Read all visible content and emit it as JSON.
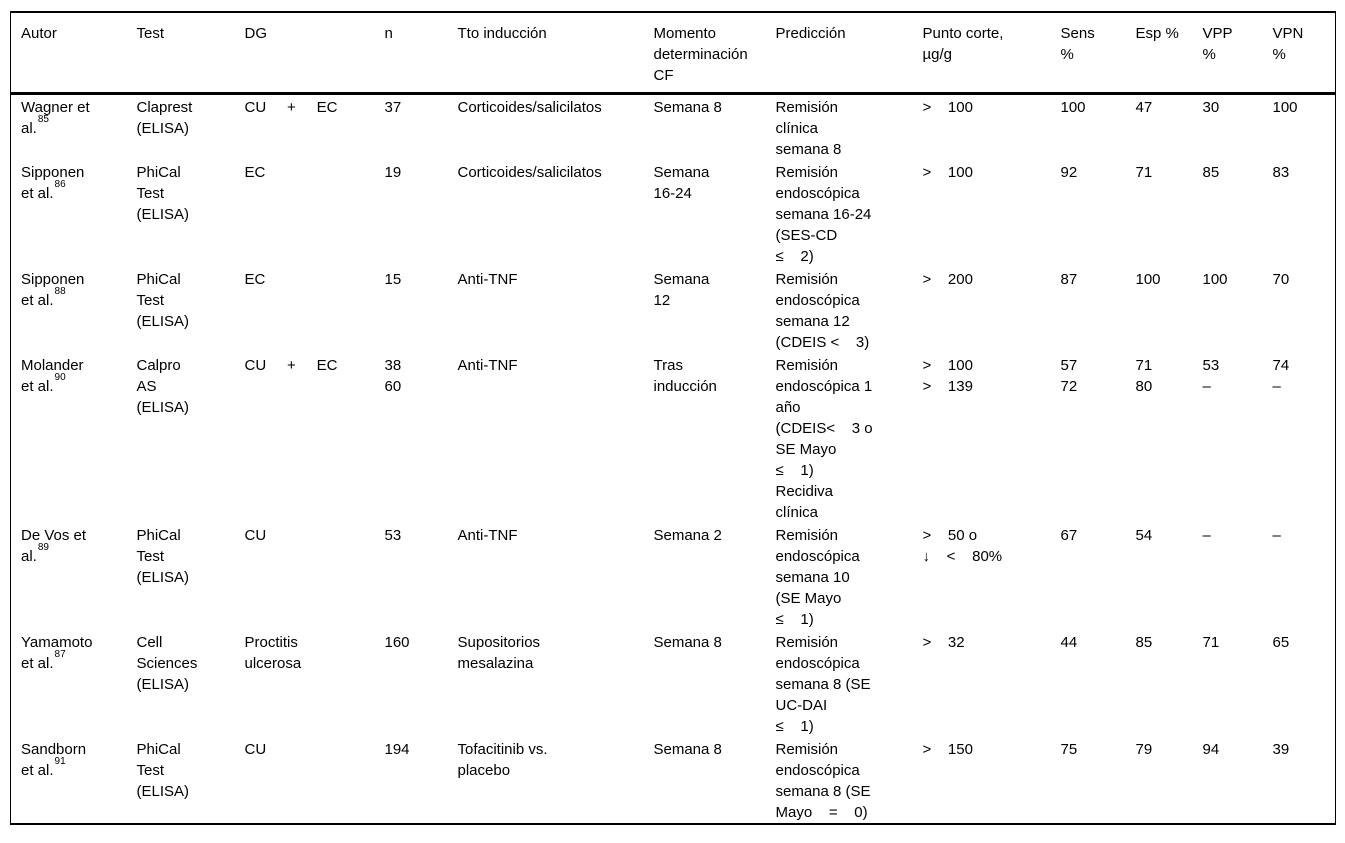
{
  "table": {
    "columns": [
      {
        "key": "autor",
        "label": "Autor"
      },
      {
        "key": "test",
        "label": "Test"
      },
      {
        "key": "dg",
        "label": "DG"
      },
      {
        "key": "n",
        "label": "n"
      },
      {
        "key": "tto",
        "label": "Tto inducción"
      },
      {
        "key": "momento",
        "label": "Momento\ndeterminación\nCF"
      },
      {
        "key": "prediccion",
        "label": "Predicción"
      },
      {
        "key": "punto",
        "label": "Punto corte,\nµg/g"
      },
      {
        "key": "sens",
        "label": "Sens\n%"
      },
      {
        "key": "esp",
        "label": "Esp %"
      },
      {
        "key": "vpp",
        "label": "VPP\n%"
      },
      {
        "key": "vpn",
        "label": "VPN\n%"
      }
    ],
    "rows": [
      {
        "autor": {
          "text": "Wagner et\nal.",
          "ref": "85"
        },
        "test": "Claprest\n(ELISA)",
        "dg": "CU     +     EC",
        "n": "37",
        "tto": "Corticoides/salicilatos",
        "momento": "Semana 8",
        "prediccion": "Remisión\nclínica\nsemana 8",
        "punto": ">    100",
        "sens": "100",
        "esp": "47",
        "vpp": "30",
        "vpn": "100"
      },
      {
        "autor": {
          "text": "Sipponen\net al.",
          "ref": "86"
        },
        "test": "PhiCal\nTest\n(ELISA)",
        "dg": "EC",
        "n": "19",
        "tto": "Corticoides/salicilatos",
        "momento": "Semana\n16-24",
        "prediccion": "Remisión\nendoscópica\nsemana 16-24\n(SES-CD\n≤    2)",
        "punto": ">    100",
        "sens": "92",
        "esp": "71",
        "vpp": "85",
        "vpn": "83"
      },
      {
        "autor": {
          "text": "Sipponen\net al.",
          "ref": "88"
        },
        "test": "PhiCal\nTest\n(ELISA)",
        "dg": "EC",
        "n": "15",
        "tto": "Anti-TNF",
        "momento": "Semana\n12",
        "prediccion": "Remisión\nendoscópica\nsemana 12\n(CDEIS <    3)",
        "punto": ">    200",
        "sens": "87",
        "esp": "100",
        "vpp": "100",
        "vpn": "70"
      },
      {
        "autor": {
          "text": "Molander\net al.",
          "ref": "90"
        },
        "test": "Calpro\nAS\n(ELISA)",
        "dg": "CU     +     EC",
        "n": "38\n60",
        "tto": "Anti-TNF",
        "momento": "Tras\ninducción",
        "prediccion": "Remisión\nendoscópica 1\naño\n(CDEIS<    3 o\nSE Mayo\n≤    1)\nRecidiva\nclínica",
        "punto": ">    100\n>    139",
        "sens": "57\n72",
        "esp": "71\n80",
        "vpp": "53\n–",
        "vpn": "74\n–"
      },
      {
        "autor": {
          "text": "De Vos et\nal.",
          "ref": "89"
        },
        "test": "PhiCal\nTest\n(ELISA)",
        "dg": "CU",
        "n": "53",
        "tto": "Anti-TNF",
        "momento": "Semana 2",
        "prediccion": "Remisión\nendoscópica\nsemana 10\n(SE Mayo\n≤    1)",
        "punto": ">    50 o\n↓    <    80%",
        "sens": "67",
        "esp": "54",
        "vpp": "–",
        "vpn": "–"
      },
      {
        "autor": {
          "text": "Yamamoto\net al.",
          "ref": "87"
        },
        "test": "Cell\nSciences\n(ELISA)",
        "dg": "Proctitis\nulcerosa",
        "n": "160",
        "tto": "Supositorios\nmesalazina",
        "momento": "Semana 8",
        "prediccion": "Remisión\nendoscópica\nsemana 8 (SE\nUC-DAI\n≤    1)",
        "punto": ">    32",
        "sens": "44",
        "esp": "85",
        "vpp": "71",
        "vpn": "65"
      },
      {
        "autor": {
          "text": "Sandborn\net al.",
          "ref": "91"
        },
        "test": "PhiCal\nTest\n(ELISA)",
        "dg": "CU",
        "n": "194",
        "tto": "Tofacitinib vs.\nplacebo",
        "momento": "Semana 8",
        "prediccion": "Remisión\nendoscópica\nsemana 8 (SE\nMayo    =    0)",
        "punto": ">    150",
        "sens": "75",
        "esp": "79",
        "vpp": "94",
        "vpn": "39"
      }
    ]
  }
}
